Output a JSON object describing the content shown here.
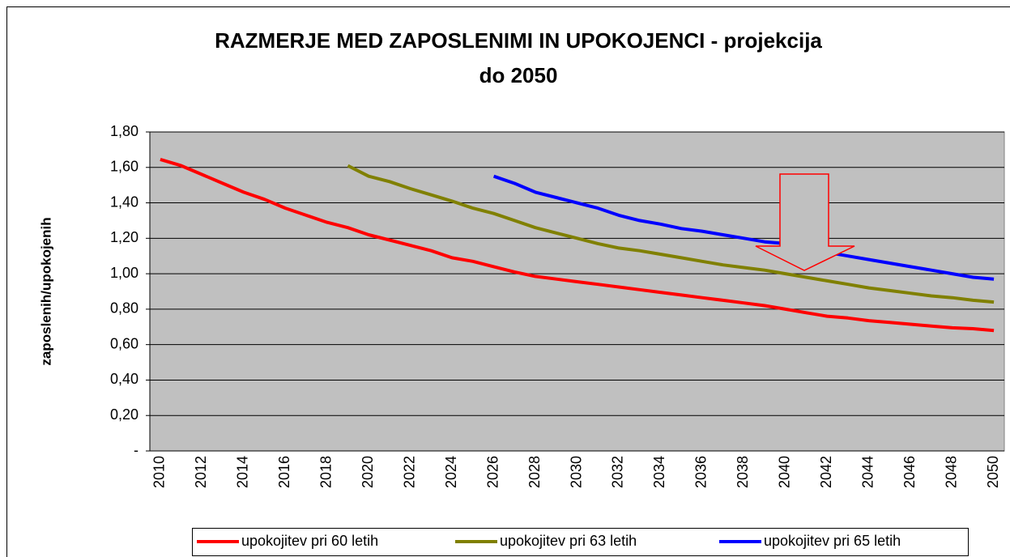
{
  "chart_data": {
    "type": "line",
    "title": [
      "RAZMERJE MED ZAPOSLENIMI IN UPOKOJENCI - projekcija",
      "do 2050"
    ],
    "ylabel": "zaposlenih/upokojenih",
    "categories": [
      "2010",
      null,
      "2012",
      null,
      "2014",
      null,
      "2016",
      null,
      "2018",
      null,
      "2020",
      null,
      "2022",
      null,
      "2024",
      null,
      "2026",
      null,
      "2028",
      null,
      "2030",
      null,
      "2032",
      null,
      "2034",
      null,
      "2036",
      null,
      "2038",
      null,
      "2040",
      null,
      "2042",
      null,
      "2044",
      null,
      "2046",
      null,
      "2048",
      null,
      "2050"
    ],
    "ylim": [
      0,
      1.8
    ],
    "yticks": [
      {
        "value": 0,
        "label": "-"
      },
      {
        "value": 0.2,
        "label": "0,20"
      },
      {
        "value": 0.4,
        "label": "0,40"
      },
      {
        "value": 0.6,
        "label": "0,60"
      },
      {
        "value": 0.8,
        "label": "0,80"
      },
      {
        "value": 1.0,
        "label": "1,00"
      },
      {
        "value": 1.2,
        "label": "1,20"
      },
      {
        "value": 1.4,
        "label": "1,40"
      },
      {
        "value": 1.6,
        "label": "1,60"
      },
      {
        "value": 1.8,
        "label": "1,80"
      }
    ],
    "grid": true,
    "legend": "bottom",
    "series": [
      {
        "name": "upokojitev pri 60 letih",
        "color": "#ff0000",
        "values": [
          1.645,
          1.61,
          1.56,
          1.51,
          1.46,
          1.42,
          1.37,
          1.33,
          1.29,
          1.26,
          1.22,
          1.19,
          1.16,
          1.13,
          1.09,
          1.07,
          1.04,
          1.01,
          0.985,
          0.97,
          0.955,
          0.94,
          0.925,
          0.91,
          0.895,
          0.88,
          0.865,
          0.85,
          0.835,
          0.82,
          0.8,
          0.78,
          0.76,
          0.75,
          0.735,
          0.725,
          0.715,
          0.705,
          0.695,
          0.69,
          0.68
        ]
      },
      {
        "name": "upokojitev pri 63 letih",
        "color": "#808000",
        "values": [
          null,
          null,
          null,
          null,
          null,
          null,
          null,
          null,
          null,
          1.61,
          1.55,
          1.52,
          1.48,
          1.445,
          1.41,
          1.37,
          1.34,
          1.3,
          1.26,
          1.23,
          1.2,
          1.17,
          1.145,
          1.13,
          1.11,
          1.09,
          1.07,
          1.05,
          1.035,
          1.02,
          1.0,
          0.98,
          0.96,
          0.94,
          0.92,
          0.905,
          0.89,
          0.875,
          0.865,
          0.85,
          0.84
        ]
      },
      {
        "name": "upokojitev pri 65 letih",
        "color": "#0000ff",
        "values": [
          null,
          null,
          null,
          null,
          null,
          null,
          null,
          null,
          null,
          null,
          null,
          null,
          null,
          null,
          null,
          null,
          1.55,
          1.51,
          1.46,
          1.43,
          1.4,
          1.37,
          1.33,
          1.3,
          1.28,
          1.255,
          1.24,
          1.22,
          1.2,
          1.18,
          1.17,
          1.15,
          1.12,
          1.1,
          1.08,
          1.06,
          1.04,
          1.02,
          1.0,
          0.98,
          0.97
        ]
      }
    ]
  }
}
